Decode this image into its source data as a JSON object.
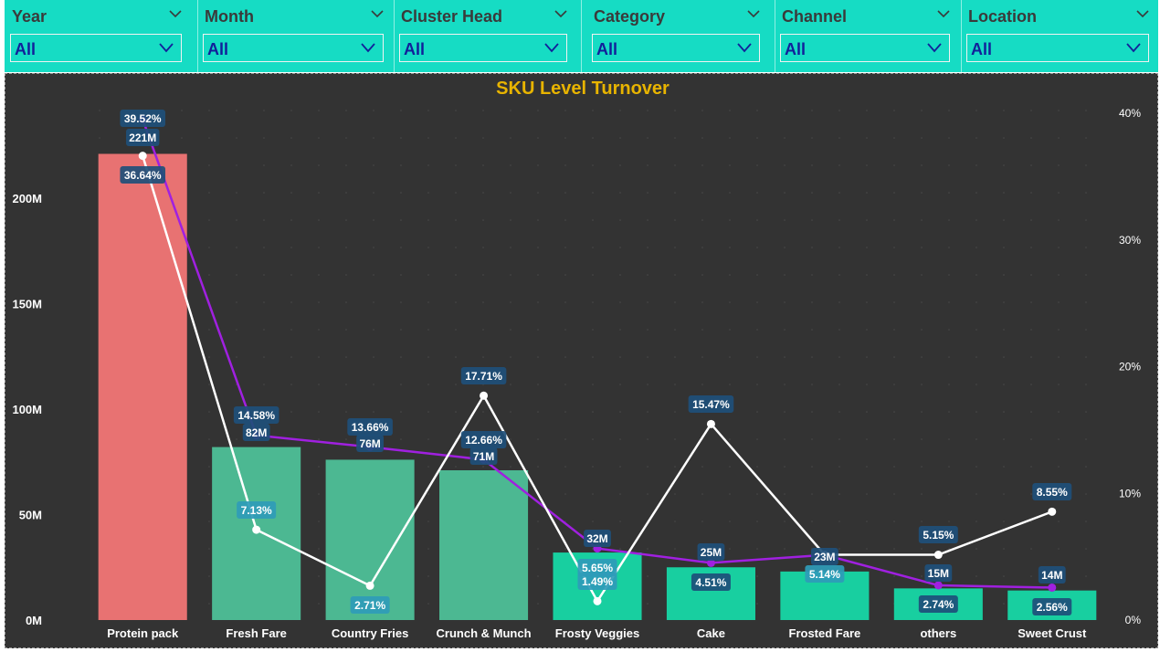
{
  "filters": [
    {
      "label": "Year",
      "value": "All"
    },
    {
      "label": "Month",
      "value": "All"
    },
    {
      "label": "Cluster Head",
      "value": "All"
    },
    {
      "label": "Category",
      "value": "All"
    },
    {
      "label": "Channel",
      "value": "All"
    },
    {
      "label": "Location",
      "value": "All"
    }
  ],
  "colors": {
    "filter_bg": "#16dcc4",
    "filter_text": "#12209a",
    "chart_bg": "#333333",
    "title": "#e8b400",
    "bar_highlight": "#e87272",
    "bar_mid": "#4cb892",
    "bar_low": "#18cfa0",
    "line_purple": "#a020e0",
    "line_white": "#ffffff",
    "label_dark": "#1e4f7a",
    "label_light": "#2f9bb8"
  },
  "chart_data": {
    "type": "bar",
    "title": "SKU Level Turnover",
    "categories": [
      "Protein pack",
      "Fresh Fare",
      "Country Fries",
      "Crunch & Munch",
      "Frosty Veggies",
      "Cake",
      "Frosted Fare",
      "others",
      "Sweet Crust"
    ],
    "y_left": {
      "ticks": [
        "0M",
        "50M",
        "100M",
        "150M",
        "200M"
      ],
      "ylim": [
        0,
        240
      ]
    },
    "y_right": {
      "ticks": [
        "0%",
        "10%",
        "20%",
        "30%",
        "40%"
      ],
      "ylim": [
        0,
        40
      ]
    },
    "series": [
      {
        "type": "bar",
        "axis": "left",
        "values": [
          221,
          82,
          76,
          71,
          32,
          25,
          23,
          15,
          14
        ],
        "labels": [
          "221M",
          "82M",
          "76M",
          "71M",
          "32M",
          "25M",
          "23M",
          "15M",
          "14M"
        ],
        "bar_colors": [
          "#e87272",
          "#4cb892",
          "#4cb892",
          "#4cb892",
          "#18cfa0",
          "#18cfa0",
          "#18cfa0",
          "#18cfa0",
          "#18cfa0"
        ]
      },
      {
        "type": "line",
        "axis": "right",
        "color": "#a020e0",
        "values": [
          39.52,
          14.58,
          13.66,
          12.66,
          5.65,
          4.51,
          5.14,
          2.74,
          2.56
        ],
        "labels": [
          "39.52%",
          "14.58%",
          "13.66%",
          "12.66%",
          "5.65%",
          "4.51%",
          "5.14%",
          "2.74%",
          "2.56%"
        ]
      },
      {
        "type": "line",
        "axis": "right",
        "color": "#ffffff",
        "values": [
          36.64,
          7.13,
          2.71,
          17.71,
          1.49,
          15.47,
          5.15,
          5.15,
          8.55
        ],
        "labels": [
          "36.64%",
          "7.13%",
          "2.71%",
          "17.71%",
          "1.49%",
          "15.47%",
          "",
          "5.15%",
          "8.55%"
        ]
      }
    ],
    "grid": "dotted"
  }
}
